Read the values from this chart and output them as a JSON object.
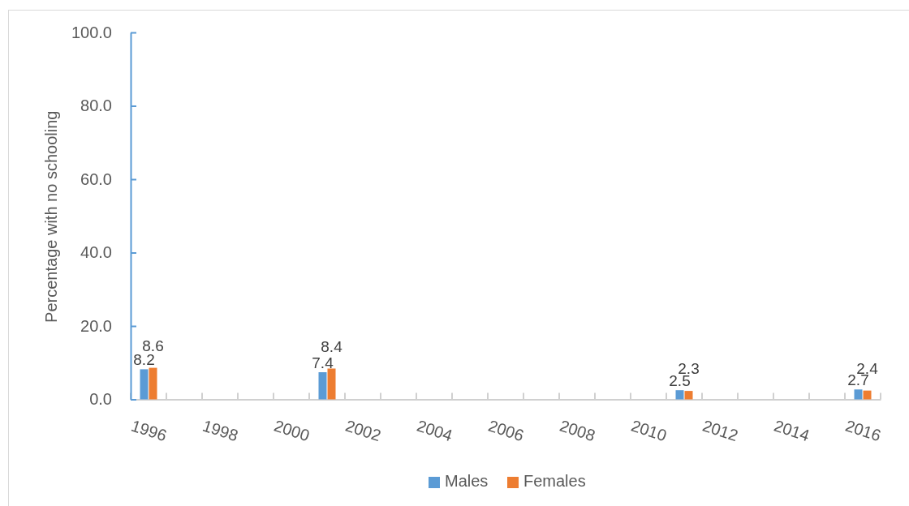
{
  "chart_data": {
    "type": "bar",
    "ylabel": "Percentage with no schooling",
    "categories": [
      "1996",
      null,
      "1998",
      null,
      "2000",
      null,
      "2002",
      null,
      "2004",
      null,
      "2006",
      null,
      "2008",
      null,
      "2010",
      null,
      "2012",
      null,
      "2014",
      null,
      "2016"
    ],
    "ylim": [
      0,
      100
    ],
    "yticks": [
      {
        "value": 0,
        "label": "0.0"
      },
      {
        "value": 20,
        "label": "20.0"
      },
      {
        "value": 40,
        "label": "40.0"
      },
      {
        "value": 60,
        "label": "60.0"
      },
      {
        "value": 80,
        "label": "80.0"
      },
      {
        "value": 100,
        "label": "100.0"
      }
    ],
    "series": [
      {
        "name": "Males",
        "color": "#5b9bd5",
        "values": [
          8.2,
          null,
          null,
          null,
          null,
          7.4,
          null,
          null,
          null,
          null,
          null,
          null,
          null,
          null,
          null,
          2.5,
          null,
          null,
          null,
          null,
          2.7
        ]
      },
      {
        "name": "Females",
        "color": "#ed7d31",
        "values": [
          8.6,
          null,
          null,
          null,
          null,
          8.4,
          null,
          null,
          null,
          null,
          null,
          null,
          null,
          null,
          null,
          2.3,
          null,
          null,
          null,
          null,
          2.4
        ]
      }
    ],
    "data_labels": true,
    "legend": "bottom"
  }
}
